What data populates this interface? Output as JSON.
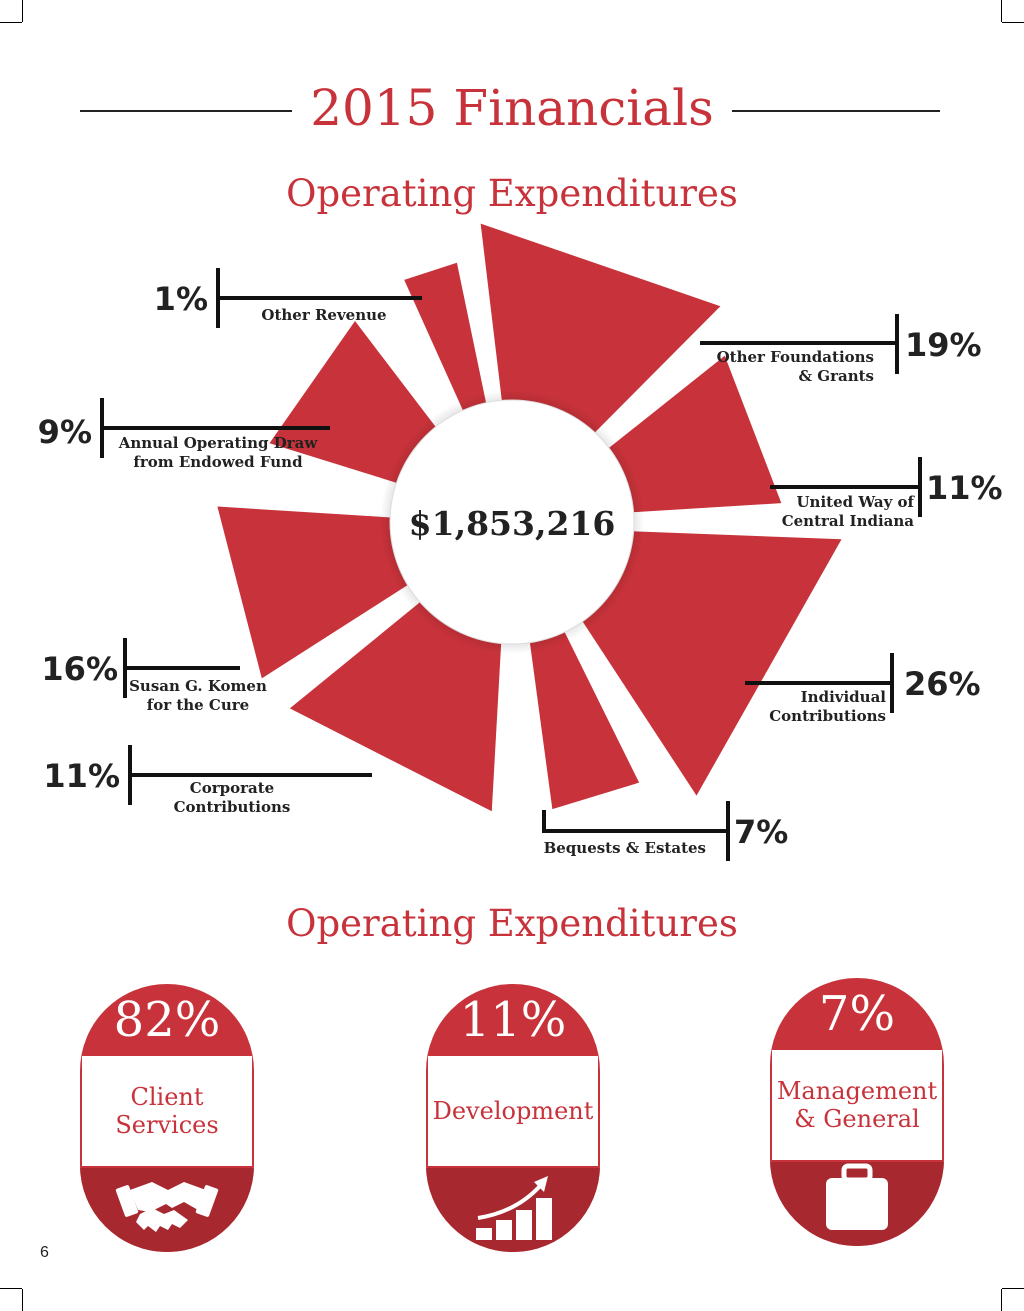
{
  "page": {
    "title": "2015 Financials",
    "page_number": "6"
  },
  "chart_data": [
    {
      "type": "pie",
      "title": "Operating Expenditures",
      "center_label": "$1,853,216",
      "categories": [
        "Other Foundations & Grants",
        "United Way of Central Indiana",
        "Individual Contributions",
        "Bequests & Estates",
        "Corporate Contributions",
        "Susan G. Komen for the Cure",
        "Annual Operating Draw from Endowed Fund",
        "Other Revenue"
      ],
      "values": [
        19,
        11,
        26,
        7,
        11,
        16,
        9,
        1
      ],
      "value_labels": [
        "19%",
        "11%",
        "26%",
        "7%",
        "11%",
        "16%",
        "9%",
        "1%"
      ],
      "label_lines": [
        [
          "Other Foundations",
          "& Grants"
        ],
        [
          "United Way of",
          "Central Indiana"
        ],
        [
          "Individual",
          "Contributions"
        ],
        [
          "Bequests & Estates"
        ],
        [
          "Corporate",
          "Contributions"
        ],
        [
          "Susan G. Komen",
          "for the Cure"
        ],
        [
          "Annual Operating Draw",
          "from Endowed Fund"
        ],
        [
          "Other Revenue"
        ]
      ],
      "color": "#c8323a"
    },
    {
      "type": "bar",
      "title": "Operating Expenditures",
      "categories": [
        "Client Services",
        "Development",
        "Management & General"
      ],
      "values": [
        82,
        11,
        7
      ],
      "value_labels": [
        "82%",
        "11%",
        "7%"
      ],
      "label_text": [
        "Client\nServices",
        "Development",
        "Management\n& General"
      ],
      "icons": [
        "handshake-icon",
        "growth-chart-icon",
        "briefcase-icon"
      ]
    }
  ],
  "colors": {
    "accent": "#c8323a",
    "accent_dark": "#a82830",
    "text": "#222222"
  }
}
